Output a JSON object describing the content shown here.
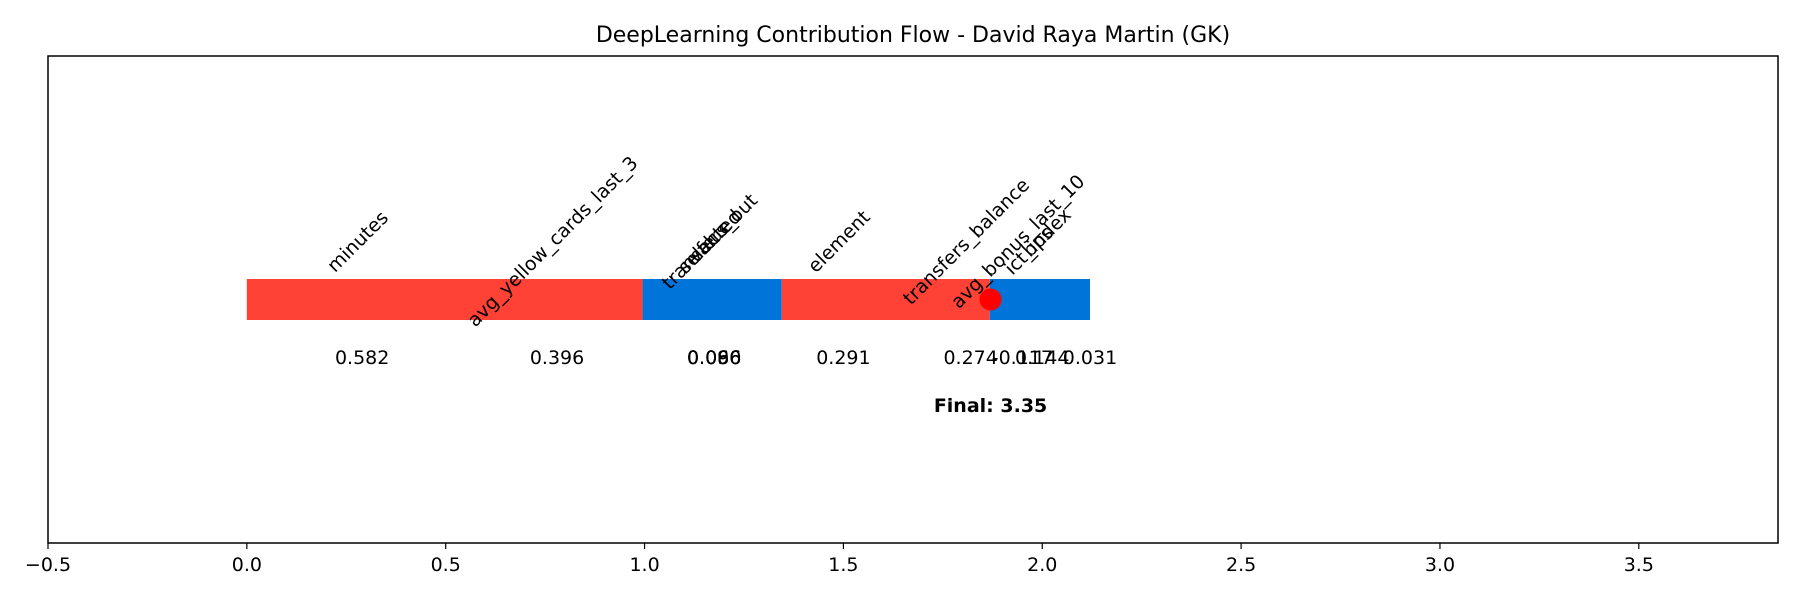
{
  "chart_data": {
    "type": "bar",
    "title": "DeepLearning Contribution Flow - David Raya Martin (GK)",
    "xlabel": "",
    "ylabel": "",
    "xlim": [
      -0.5,
      3.85
    ],
    "xticks": [
      -0.5,
      0.0,
      0.5,
      1.0,
      1.5,
      2.0,
      2.5,
      3.0,
      3.5
    ],
    "xtick_labels": [
      "−0.5",
      "0.0",
      "0.5",
      "1.0",
      "1.5",
      "2.0",
      "2.5",
      "3.0",
      "3.5"
    ],
    "grid": false,
    "yticks_visible": false,
    "segments": [
      {
        "feature": "minutes",
        "start": 0.0,
        "value": 0.582,
        "label": "0.582"
      },
      {
        "feature": "avg_yellow_cards_last_3",
        "start": 0.582,
        "value": 0.396,
        "label": "0.396"
      },
      {
        "feature": "transfers_out",
        "start": 0.978,
        "value": 0.096,
        "label": "0.096"
      },
      {
        "feature": "selected",
        "start": 1.074,
        "value": 0.086,
        "label": "0.086"
      },
      {
        "feature": "value",
        "start": 1.16,
        "value": 0.06,
        "label": "0.060"
      },
      {
        "feature": "element",
        "start": 1.22,
        "value": 0.291,
        "label": "0.291"
      },
      {
        "feature": "transfers_balance",
        "start": 1.511,
        "value": 0.274,
        "label": "0.274"
      },
      {
        "feature": "avg_bonus_last_10",
        "start": 1.785,
        "value": -0.117,
        "label": "-0.117"
      },
      {
        "feature": "ict_index",
        "start": 1.668,
        "value": 0.144,
        "label": "0.144"
      },
      {
        "feature": "bps",
        "start": 1.812,
        "value": 0.031,
        "label": "0.031"
      }
    ],
    "bar_fill_ranges": [
      {
        "start": 0.0,
        "end": 0.995,
        "color": "#ff4136"
      },
      {
        "start": 0.995,
        "end": 1.345,
        "color": "#0074d9"
      },
      {
        "start": 1.345,
        "end": 1.868,
        "color": "#ff4136"
      },
      {
        "start": 1.868,
        "end": 2.12,
        "color": "#0074d9"
      }
    ],
    "label_positions": [
      0.29,
      0.78,
      1.175,
      1.175,
      1.175,
      1.5,
      1.82,
      1.95,
      2.0,
      2.0
    ],
    "value_label_positions": [
      0.29,
      0.78,
      1.175,
      1.175,
      1.175,
      1.5,
      1.82,
      1.95,
      2.0,
      2.12
    ],
    "final_marker": {
      "value": 3.35,
      "x": 1.87,
      "color": "#ff0000",
      "label": "Final: 3.35"
    },
    "colors": {
      "positive": "#ff4136",
      "negative": "#0074d9",
      "marker": "#ff0000"
    }
  }
}
